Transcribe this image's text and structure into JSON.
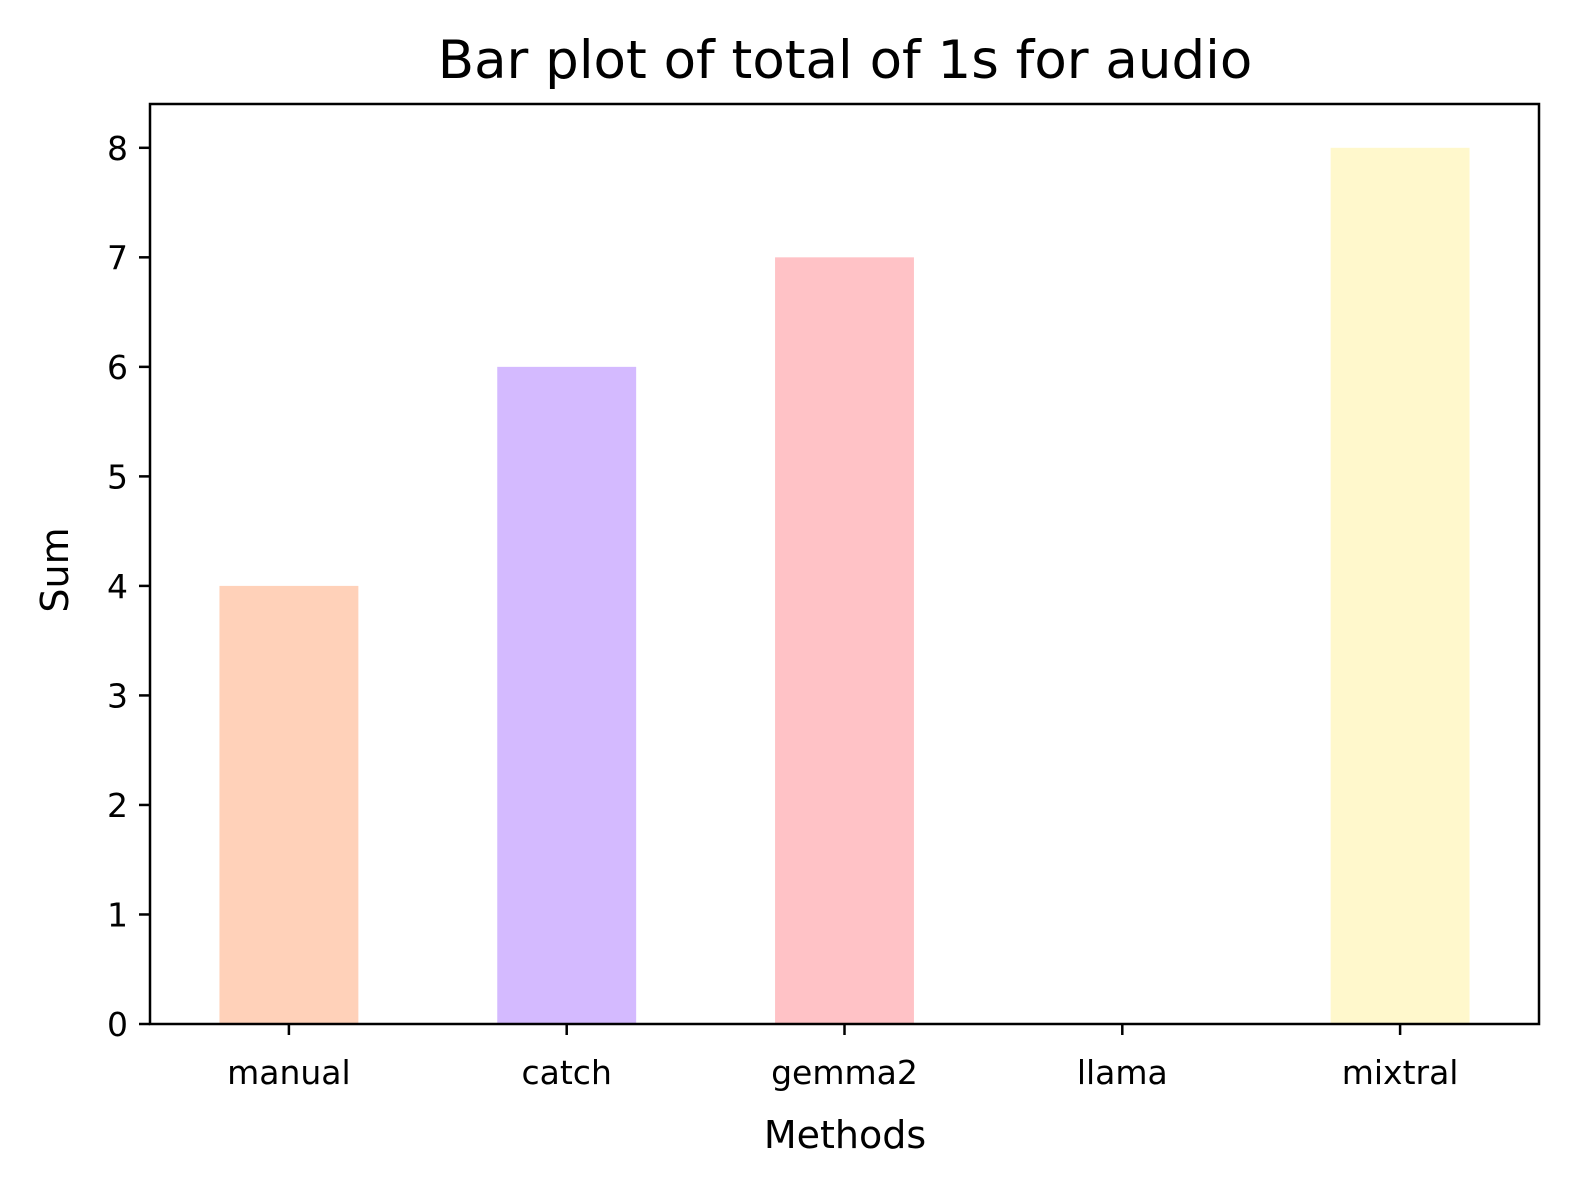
{
  "chart_data": {
    "type": "bar",
    "title": "Bar plot of total of 1s for audio",
    "xlabel": "Methods",
    "ylabel": "Sum",
    "categories": [
      "manual",
      "catch",
      "gemma2",
      "llama",
      "mixtral"
    ],
    "values": [
      4,
      6,
      7,
      0,
      8
    ],
    "colors": [
      "#ffd1b9",
      "#d4baff",
      "#ffc2c6",
      "#d9d9d9",
      "#fff8cc"
    ],
    "ylim": [
      0,
      8.4
    ],
    "yticks": [
      0,
      1,
      2,
      3,
      4,
      5,
      6,
      7,
      8
    ],
    "grid": false,
    "legend": "none"
  }
}
